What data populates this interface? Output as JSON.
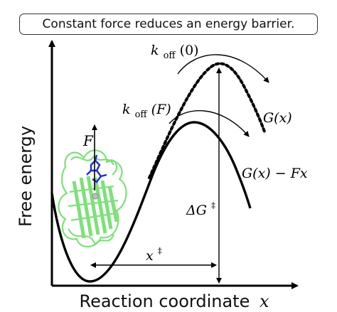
{
  "title": "Constant force reduces an energy barrier.",
  "axes": {
    "ylabel": "Free energy",
    "xlabel_text": "Reaction coordinate",
    "xlabel_var": "x"
  },
  "labels": {
    "koff_zero_k": "k",
    "koff_zero_sub": "off",
    "koff_zero_arg": "(0)",
    "koff_force_k": "k",
    "koff_force_sub": "off",
    "koff_force_arg": "(F)",
    "curve_unperturbed": "G(x)",
    "curve_tilted": "G(x) − Fx",
    "barrier_height_base": "ΔG",
    "barrier_height_sup": "‡",
    "barrier_distance_base": "x",
    "barrier_distance_sup": "‡",
    "force": "F"
  },
  "colors": {
    "curve": "#000000",
    "protein": "#7ee07a",
    "ligand": "#1a2ecf"
  }
}
